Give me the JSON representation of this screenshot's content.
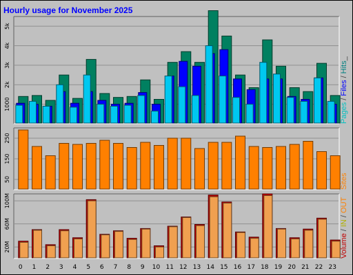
{
  "title": "Hourly usage for November 2025",
  "chart_data": {
    "type": "bar",
    "categories": [
      "0",
      "1",
      "2",
      "3",
      "4",
      "5",
      "6",
      "7",
      "8",
      "9",
      "10",
      "11",
      "12",
      "13",
      "14",
      "15",
      "16",
      "17",
      "18",
      "19",
      "20",
      "21",
      "22",
      "23"
    ],
    "panels": [
      {
        "id": "hits",
        "ylim": [
          0,
          5500
        ],
        "yticks": [
          1000,
          2000,
          3000,
          4000,
          5000
        ],
        "ytick_labels": [
          "1000",
          "2k",
          "3k",
          "4k",
          "5k"
        ],
        "legend": [
          {
            "text": "Pages",
            "color": "#00c0c0"
          },
          {
            "text": " / ",
            "color": "#404040"
          },
          {
            "text": "Files",
            "color": "#0000ff"
          },
          {
            "text": " / ",
            "color": "#404040"
          },
          {
            "text": "Hits",
            "color": "#008080"
          },
          {
            "text": "_",
            "color": "#404040"
          }
        ],
        "series": [
          {
            "name": "Hits",
            "color": "#008060",
            "values": [
              1400,
              1450,
              1200,
              2500,
              1300,
              3300,
              1550,
              1350,
              1400,
              2250,
              1250,
              3150,
              3700,
              3150,
              5800,
              4500,
              2500,
              1850,
              4300,
              2950,
              1850,
              1650,
              3100,
              1450
            ]
          },
          {
            "name": "Files",
            "color": "#0000ff",
            "values": [
              1050,
              1000,
              900,
              1650,
              1050,
              1650,
              1200,
              1000,
              1050,
              1600,
              1000,
              2450,
              3200,
              2950,
              3600,
              3800,
              2300,
              1750,
              2300,
              2300,
              1400,
              1250,
              2350,
              1000
            ]
          },
          {
            "name": "Pages",
            "color": "#00c8f0",
            "values": [
              950,
              1150,
              900,
              2000,
              850,
              2500,
              1000,
              900,
              950,
              1450,
              650,
              2450,
              1900,
              1450,
              4000,
              2450,
              1350,
              1000,
              3150,
              2550,
              1350,
              1150,
              2350,
              1150
            ]
          }
        ]
      },
      {
        "id": "sites",
        "ylim": [
          0,
          300
        ],
        "yticks": [
          50,
          150,
          250
        ],
        "ytick_labels": [
          "50",
          "150",
          "250"
        ],
        "legend": [
          {
            "text": "Sites",
            "color": "#ff8000"
          }
        ],
        "series": [
          {
            "name": "Sites",
            "color": "#ff8000",
            "values": [
              290,
              210,
              165,
              225,
              220,
              225,
              240,
              225,
              205,
              230,
              215,
              250,
              250,
              200,
              230,
              230,
              260,
              210,
              205,
              210,
              220,
              235,
              185,
              165
            ]
          }
        ]
      },
      {
        "id": "volume",
        "ylim": [
          0,
          112
        ],
        "yticks": [
          20,
          60,
          100
        ],
        "ytick_labels": [
          "20M",
          "60M",
          "100M"
        ],
        "legend": [
          {
            "text": "Volume",
            "color": "#c00000"
          },
          {
            "text": " / ",
            "color": "#404040"
          },
          {
            "text": "IN",
            "color": "#b0b000"
          },
          {
            "text": " / ",
            "color": "#404040"
          },
          {
            "text": "OUT",
            "color": "#ff8000"
          }
        ],
        "series": [
          {
            "name": "Volume",
            "color": "#c00000",
            "values": [
              30,
              50,
              24,
              50,
              36,
              102,
              42,
              48,
              35,
              52,
              22,
              56,
              72,
              59,
              110,
              98,
              46,
              37,
              112,
              52,
              36,
              51,
              70,
              32
            ]
          },
          {
            "name": "OUT",
            "color": "#f0a050",
            "values": [
              28,
              49,
              22,
              48,
              34,
              100,
              41,
              47,
              33,
              51,
              20,
              55,
              71,
              57,
              107,
              96,
              45,
              35,
              109,
              51,
              34,
              49,
              68,
              30
            ]
          }
        ]
      }
    ]
  }
}
